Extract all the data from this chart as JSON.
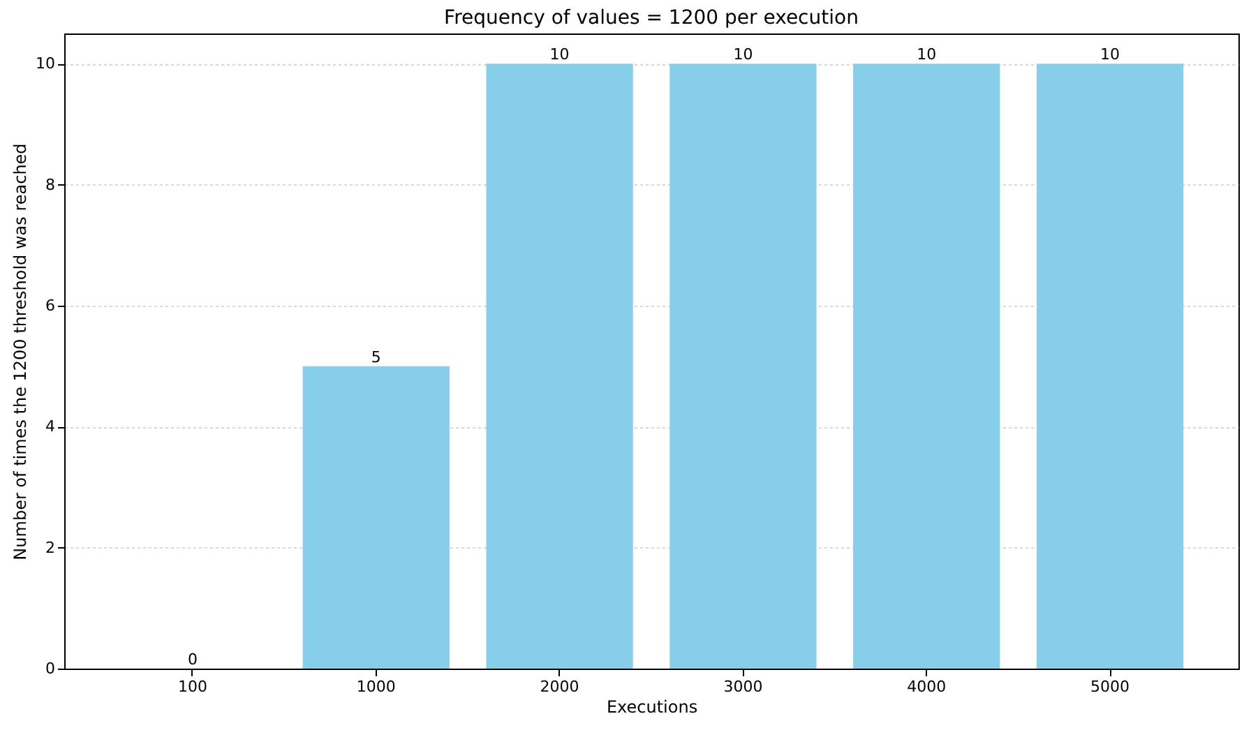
{
  "chart_data": {
    "type": "bar",
    "title": "Frequency of values = 1200 per execution",
    "xlabel": "Executions",
    "ylabel": "Number of times the 1200 threshold was reached",
    "categories": [
      "100",
      "1000",
      "2000",
      "3000",
      "4000",
      "5000"
    ],
    "values": [
      0,
      5,
      10,
      10,
      10,
      10
    ],
    "color": "#87ceeb",
    "ylim": [
      0,
      10.5
    ],
    "yticks": [
      0,
      2,
      4,
      6,
      8,
      10
    ],
    "grid": "y",
    "data_labels": true
  }
}
